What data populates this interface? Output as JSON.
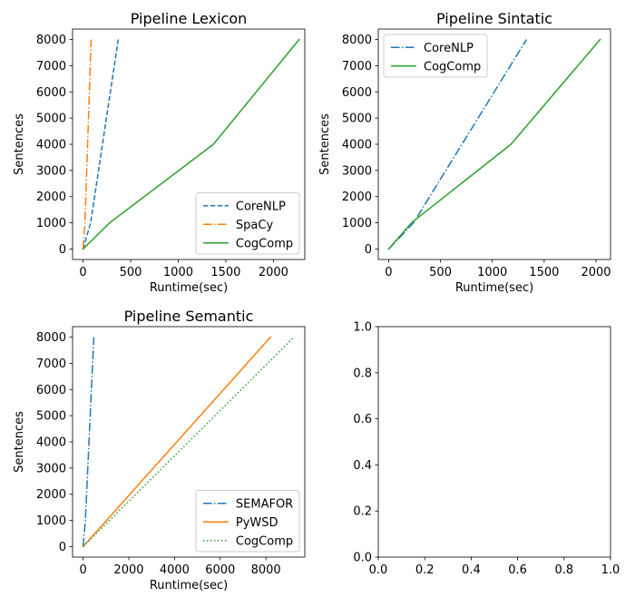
{
  "chart_data": [
    {
      "type": "line",
      "title": "Pipeline Lexicon",
      "xlabel": "Runtime(sec)",
      "ylabel": "Sentences",
      "xlim": [
        -110,
        2330
      ],
      "ylim": [
        -400,
        8400
      ],
      "xticks": [
        0,
        500,
        1000,
        1500,
        2000
      ],
      "yticks": [
        0,
        1000,
        2000,
        3000,
        4000,
        5000,
        6000,
        7000,
        8000
      ],
      "legend": "lower-right",
      "series": [
        {
          "name": "CoreNLP",
          "style": "dashed",
          "color": "#1f77b4",
          "x": [
            0,
            80,
            370
          ],
          "y": [
            0,
            1000,
            8000
          ]
        },
        {
          "name": "SpaCy",
          "style": "dashdot",
          "color": "#ff7f0e",
          "x": [
            0,
            20,
            85
          ],
          "y": [
            0,
            1000,
            8000
          ]
        },
        {
          "name": "CogComp",
          "style": "solid",
          "color": "#2ca02c",
          "x": [
            0,
            280,
            1370,
            2270
          ],
          "y": [
            0,
            1000,
            4000,
            8000
          ]
        }
      ]
    },
    {
      "type": "line",
      "title": "Pipeline Sintatic",
      "xlabel": "Runtime(sec)",
      "ylabel": "Sentences",
      "xlim": [
        -100,
        2140
      ],
      "ylim": [
        -400,
        8400
      ],
      "xticks": [
        0,
        500,
        1000,
        1500,
        2000
      ],
      "yticks": [
        0,
        1000,
        2000,
        3000,
        4000,
        5000,
        6000,
        7000,
        8000
      ],
      "legend": "upper-left",
      "series": [
        {
          "name": "CoreNLP",
          "style": "dashdot",
          "color": "#1f77b4",
          "x": [
            0,
            240,
            1330
          ],
          "y": [
            0,
            1000,
            8000
          ]
        },
        {
          "name": "CogComp",
          "style": "solid",
          "color": "#2ca02c",
          "x": [
            0,
            220,
            1180,
            2040
          ],
          "y": [
            0,
            1000,
            4000,
            8000
          ]
        }
      ]
    },
    {
      "type": "line",
      "title": "Pipeline Semantic",
      "xlabel": "Runtime(sec)",
      "ylabel": "Sentences",
      "xlim": [
        -460,
        9700
      ],
      "ylim": [
        -400,
        8400
      ],
      "xticks": [
        0,
        2000,
        4000,
        6000,
        8000
      ],
      "yticks": [
        0,
        1000,
        2000,
        3000,
        4000,
        5000,
        6000,
        7000,
        8000
      ],
      "legend": "lower-right",
      "series": [
        {
          "name": "SEMAFOR",
          "style": "dashdot",
          "color": "#1f77b4",
          "x": [
            0,
            100,
            470
          ],
          "y": [
            0,
            1000,
            8000
          ]
        },
        {
          "name": "PyWSD",
          "style": "solid",
          "color": "#ff7f0e",
          "x": [
            0,
            8200
          ],
          "y": [
            0,
            8000
          ]
        },
        {
          "name": "CogComp",
          "style": "dotted",
          "color": "#2ca02c",
          "x": [
            0,
            9230
          ],
          "y": [
            0,
            8000
          ]
        }
      ]
    },
    {
      "type": "line",
      "title": "",
      "xlabel": "",
      "ylabel": "",
      "xlim": [
        0,
        1
      ],
      "ylim": [
        0,
        1
      ],
      "xticks": [
        "0.0",
        "0.2",
        "0.4",
        "0.6",
        "0.8",
        "1.0"
      ],
      "yticks": [
        "0.0",
        "0.2",
        "0.4",
        "0.6",
        "0.8",
        "1.0"
      ],
      "series": []
    }
  ]
}
